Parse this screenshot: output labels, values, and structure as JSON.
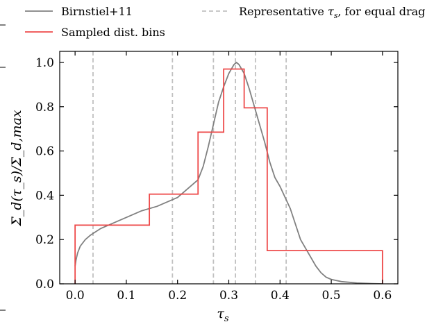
{
  "colors": {
    "birnstiel": "#808080",
    "sampled": "#ee4a4a",
    "representative": "#c0c0c0",
    "axis": "#000000"
  },
  "chart_data": {
    "type": "line",
    "xlabel": "τ_s",
    "ylabel": "Σ_d(τ_s)/Σ_d,max",
    "xlim": [
      -0.03,
      0.63
    ],
    "ylim": [
      0.0,
      1.05
    ],
    "xticks": [
      0.0,
      0.1,
      0.2,
      0.3,
      0.4,
      0.5,
      0.6
    ],
    "xtick_labels": [
      "0.0",
      "0.1",
      "0.2",
      "0.3",
      "0.4",
      "0.5",
      "0.6"
    ],
    "yticks": [
      0.0,
      0.2,
      0.4,
      0.6,
      0.8,
      1.0
    ],
    "ytick_labels": [
      "0.0",
      "0.2",
      "0.4",
      "0.6",
      "0.8",
      "1.0"
    ],
    "grid": false,
    "legend_position": "top",
    "series": [
      {
        "name": "Birnstiel+11",
        "style": "solid",
        "color": "#808080",
        "x": [
          0.0,
          0.002,
          0.005,
          0.01,
          0.02,
          0.03,
          0.05,
          0.08,
          0.1,
          0.13,
          0.16,
          0.18,
          0.2,
          0.22,
          0.23,
          0.24,
          0.25,
          0.26,
          0.27,
          0.28,
          0.29,
          0.3,
          0.305,
          0.31,
          0.315,
          0.32,
          0.33,
          0.34,
          0.35,
          0.36,
          0.37,
          0.38,
          0.39,
          0.4,
          0.41,
          0.42,
          0.43,
          0.44,
          0.45,
          0.46,
          0.47,
          0.48,
          0.49,
          0.5,
          0.52,
          0.55,
          0.58,
          0.6
        ],
        "y": [
          0.08,
          0.11,
          0.14,
          0.17,
          0.2,
          0.22,
          0.25,
          0.28,
          0.3,
          0.33,
          0.35,
          0.37,
          0.39,
          0.43,
          0.45,
          0.47,
          0.53,
          0.62,
          0.72,
          0.82,
          0.89,
          0.95,
          0.97,
          0.99,
          1.0,
          0.99,
          0.95,
          0.88,
          0.8,
          0.72,
          0.64,
          0.55,
          0.48,
          0.44,
          0.39,
          0.34,
          0.27,
          0.2,
          0.16,
          0.12,
          0.08,
          0.05,
          0.03,
          0.02,
          0.01,
          0.004,
          0.001,
          0.0
        ]
      },
      {
        "name": "Sampled dist. bins",
        "style": "step",
        "color": "#ee4a4a",
        "bin_edges": [
          0.0,
          0.145,
          0.24,
          0.29,
          0.33,
          0.375,
          0.6
        ],
        "values": [
          0.265,
          0.405,
          0.685,
          0.97,
          0.795,
          0.15
        ]
      },
      {
        "name": "Representative τs, for equal drag",
        "style": "dashed-vlines",
        "color": "#c0c0c0",
        "x": [
          0.035,
          0.19,
          0.27,
          0.313,
          0.352,
          0.412
        ]
      }
    ]
  },
  "legend": {
    "entries": [
      {
        "label": "Birnstiel+11"
      },
      {
        "label": "Sampled dist. bins"
      },
      {
        "label": "Representative",
        "math": "τ",
        "sub": "s",
        "suffix": ", for equal drag"
      }
    ]
  },
  "axes": {
    "xlabel_main": "τ",
    "xlabel_sub": "s",
    "ylabel_text": "Σ_d(τ_s)/Σ_d,max"
  }
}
